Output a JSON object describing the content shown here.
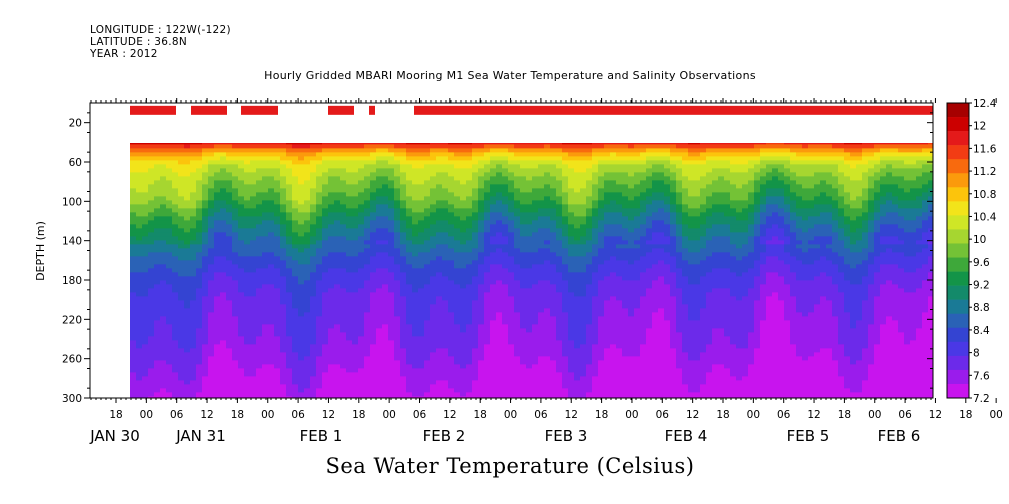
{
  "header": {
    "longitude": "LONGITUDE : 122W(-122)",
    "latitude": "LATITUDE : 36.8N",
    "year": "YEAR : 2012"
  },
  "chart_data": {
    "type": "heatmap",
    "title": "Hourly Gridded MBARI Mooring M1 Sea Water Temperature and Salinity Observations",
    "xlabel": "Sea Water Temperature (Celsius)",
    "ylabel": "DEPTH (m)",
    "y_axis": {
      "ticks": [
        20,
        60,
        100,
        140,
        180,
        220,
        260,
        300
      ],
      "range": [
        0,
        300
      ],
      "inverted": true
    },
    "x_axis": {
      "hour_ticks": [
        "18",
        "00",
        "06",
        "12",
        "18",
        "00",
        "06",
        "12",
        "18",
        "00",
        "06",
        "12",
        "18",
        "00",
        "06",
        "12",
        "18",
        "00",
        "06",
        "12",
        "18",
        "00",
        "06",
        "12",
        "18",
        "00",
        "06",
        "12",
        "18",
        "00",
        "06"
      ],
      "day_labels": [
        "JAN 30",
        "JAN 31",
        "FEB  1",
        "FEB  2",
        "FEB  3",
        "FEB  4",
        "FEB  5",
        "FEB  6"
      ]
    },
    "colorbar": {
      "levels": [
        "12.4",
        "12",
        "11.6",
        "11.2",
        "10.8",
        "10.4",
        "10",
        "9.6",
        "9.2",
        "8.8",
        "8.4",
        "8",
        "7.6",
        "7.2"
      ],
      "colors": [
        "#a60000",
        "#cc0000",
        "#e41a1a",
        "#f23c14",
        "#f86a0e",
        "#fb9a0c",
        "#fcc40c",
        "#f2e41a",
        "#cfe626",
        "#a6d630",
        "#74c236",
        "#3ea83a",
        "#139448",
        "#138a6a",
        "#1a7a96",
        "#2a62b6",
        "#3444d2",
        "#4a38e6",
        "#6c2aea",
        "#9a1cec",
        "#c814ee"
      ],
      "range": [
        7.2,
        12.4
      ]
    },
    "profile_depth_m": [
      38,
      48,
      60,
      75,
      95,
      115,
      135,
      155,
      175,
      195,
      215,
      240,
      265,
      285,
      300
    ],
    "profile_temp_c": [
      11.9,
      11.0,
      10.4,
      10.1,
      9.8,
      9.3,
      8.9,
      8.5,
      8.2,
      8.0,
      7.9,
      7.8,
      7.6,
      7.45,
      7.3
    ],
    "surface_bar_depth_m": 10,
    "surface_temp_c": 11.8
  }
}
